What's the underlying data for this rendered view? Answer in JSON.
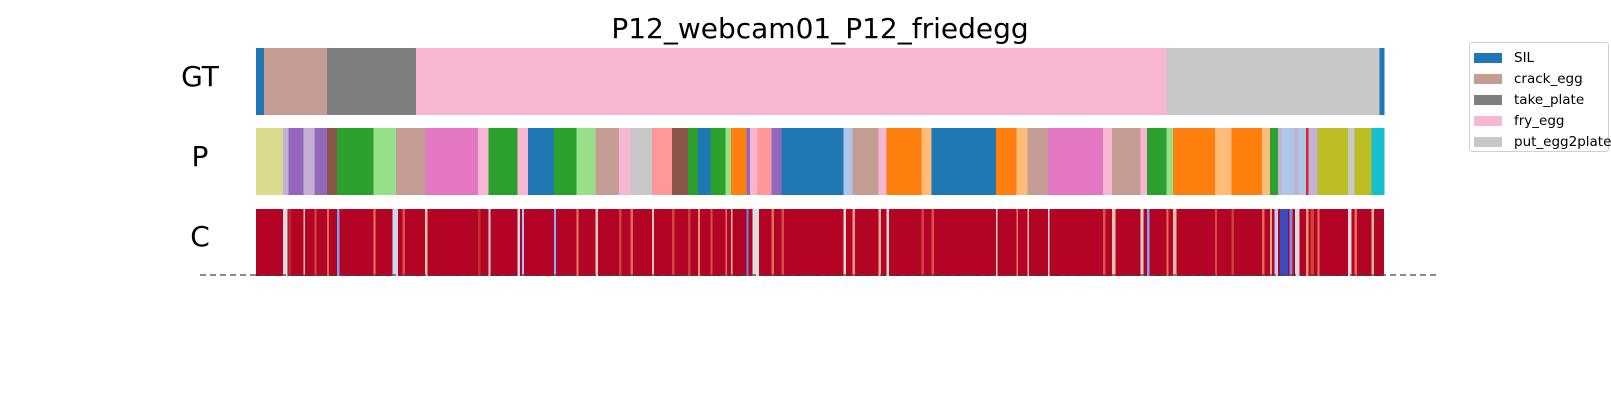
{
  "chart_data": {
    "type": "segmentation",
    "title": "P12_webcam01_P12_friedegg",
    "rows": [
      {
        "label": "GT",
        "segments": [
          {
            "start": 0.0,
            "end": 0.7,
            "class": "SIL",
            "color": "#1f77b4"
          },
          {
            "start": 0.7,
            "end": 6.3,
            "class": "crack_egg",
            "color": "#c49c94"
          },
          {
            "start": 6.3,
            "end": 14.2,
            "class": "take_plate",
            "color": "#7f7f7f"
          },
          {
            "start": 14.2,
            "end": 80.7,
            "class": "fry_egg",
            "color": "#f7b6d2"
          },
          {
            "start": 80.7,
            "end": 99.6,
            "class": "put_egg2plate",
            "color": "#c7c7c7"
          },
          {
            "start": 99.6,
            "end": 100.0,
            "class": "SIL",
            "color": "#1f77b4"
          }
        ]
      },
      {
        "label": "P",
        "segments": [
          {
            "start": 0.0,
            "end": 2.4,
            "color": "#dbdb8d"
          },
          {
            "start": 2.4,
            "end": 2.9,
            "color": "#c5b0d5"
          },
          {
            "start": 2.9,
            "end": 4.2,
            "color": "#9467bd"
          },
          {
            "start": 4.2,
            "end": 5.2,
            "color": "#c5b0d5"
          },
          {
            "start": 5.2,
            "end": 6.3,
            "color": "#9467bd"
          },
          {
            "start": 6.3,
            "end": 7.2,
            "color": "#8c564b"
          },
          {
            "start": 7.2,
            "end": 10.4,
            "color": "#2ca02c"
          },
          {
            "start": 10.4,
            "end": 12.4,
            "color": "#98df8a"
          },
          {
            "start": 12.4,
            "end": 15.0,
            "color": "#c49c94"
          },
          {
            "start": 15.0,
            "end": 19.7,
            "color": "#e377c2"
          },
          {
            "start": 19.7,
            "end": 20.6,
            "color": "#f7b6d2"
          },
          {
            "start": 20.6,
            "end": 23.2,
            "color": "#2ca02c"
          },
          {
            "start": 23.2,
            "end": 24.1,
            "color": "#f7b6d2"
          },
          {
            "start": 24.1,
            "end": 26.4,
            "color": "#1f77b4"
          },
          {
            "start": 26.4,
            "end": 28.4,
            "color": "#2ca02c"
          },
          {
            "start": 28.4,
            "end": 30.1,
            "color": "#98df8a"
          },
          {
            "start": 30.1,
            "end": 32.2,
            "color": "#c49c94"
          },
          {
            "start": 32.2,
            "end": 33.2,
            "color": "#f7b6d2"
          },
          {
            "start": 33.2,
            "end": 35.1,
            "color": "#c7c7c7"
          },
          {
            "start": 35.1,
            "end": 36.9,
            "color": "#ff9896"
          },
          {
            "start": 36.9,
            "end": 38.3,
            "color": "#8c564b"
          },
          {
            "start": 38.3,
            "end": 39.2,
            "color": "#2ca02c"
          },
          {
            "start": 39.2,
            "end": 40.3,
            "color": "#1f77b4"
          },
          {
            "start": 40.3,
            "end": 41.6,
            "color": "#2ca02c"
          },
          {
            "start": 41.6,
            "end": 42.1,
            "color": "#98df8a"
          },
          {
            "start": 42.1,
            "end": 43.5,
            "color": "#ff7f0e"
          },
          {
            "start": 43.5,
            "end": 43.8,
            "color": "#9467bd"
          },
          {
            "start": 43.8,
            "end": 44.4,
            "color": "#f7b6d2"
          },
          {
            "start": 44.4,
            "end": 45.7,
            "color": "#ff9896"
          },
          {
            "start": 45.7,
            "end": 46.6,
            "color": "#9467bd"
          },
          {
            "start": 46.6,
            "end": 52.1,
            "color": "#1f77b4"
          },
          {
            "start": 52.1,
            "end": 52.9,
            "color": "#aec7e8"
          },
          {
            "start": 52.9,
            "end": 55.2,
            "color": "#c49c94"
          },
          {
            "start": 55.2,
            "end": 55.9,
            "color": "#f7b6d2"
          },
          {
            "start": 55.9,
            "end": 59.0,
            "color": "#ff7f0e"
          },
          {
            "start": 59.0,
            "end": 59.9,
            "color": "#ffbb78"
          },
          {
            "start": 59.9,
            "end": 65.6,
            "color": "#1f77b4"
          },
          {
            "start": 65.6,
            "end": 67.4,
            "color": "#ff7f0e"
          },
          {
            "start": 67.4,
            "end": 68.4,
            "color": "#ffbb78"
          },
          {
            "start": 68.4,
            "end": 70.2,
            "color": "#c49c94"
          },
          {
            "start": 70.2,
            "end": 75.1,
            "color": "#e377c2"
          },
          {
            "start": 75.1,
            "end": 75.9,
            "color": "#f7b6d2"
          },
          {
            "start": 75.9,
            "end": 78.4,
            "color": "#c49c94"
          },
          {
            "start": 78.4,
            "end": 79.0,
            "color": "#f7b6d2"
          },
          {
            "start": 79.0,
            "end": 80.7,
            "color": "#2ca02c"
          },
          {
            "start": 80.7,
            "end": 81.3,
            "color": "#98df8a"
          },
          {
            "start": 81.3,
            "end": 85.0,
            "color": "#ff7f0e"
          },
          {
            "start": 85.0,
            "end": 86.5,
            "color": "#ffbb78"
          },
          {
            "start": 86.5,
            "end": 89.2,
            "color": "#ff7f0e"
          },
          {
            "start": 89.2,
            "end": 89.9,
            "color": "#ffbb78"
          },
          {
            "start": 89.9,
            "end": 90.6,
            "color": "#2ca02c"
          },
          {
            "start": 90.6,
            "end": 90.9,
            "color": "#c5b0d5"
          },
          {
            "start": 90.9,
            "end": 92.0,
            "color": "#aec7e8"
          },
          {
            "start": 92.0,
            "end": 92.4,
            "color": "#c5b0d5"
          },
          {
            "start": 92.4,
            "end": 93.1,
            "color": "#aec7e8"
          },
          {
            "start": 93.1,
            "end": 93.3,
            "color": "#d62728"
          },
          {
            "start": 93.3,
            "end": 94.1,
            "color": "#c5b0d5"
          },
          {
            "start": 94.1,
            "end": 96.8,
            "color": "#bcbd22"
          },
          {
            "start": 96.8,
            "end": 97.4,
            "color": "#c7c7c7"
          },
          {
            "start": 97.4,
            "end": 98.9,
            "color": "#bcbd22"
          },
          {
            "start": 98.9,
            "end": 100.0,
            "color": "#17becf"
          }
        ]
      },
      {
        "label": "C",
        "colormap": "coolwarm",
        "background_color": "#b40426",
        "low_confidence_marks": [
          {
            "pos": 2.4,
            "width": 0.4,
            "color": "#dcdddd"
          },
          {
            "pos": 2.9,
            "width": 0.2,
            "color": "#c0282f"
          },
          {
            "pos": 4.2,
            "width": 0.15,
            "color": "#ebc0a8"
          },
          {
            "pos": 5.2,
            "width": 0.15,
            "color": "#d24b40"
          },
          {
            "pos": 6.3,
            "width": 0.15,
            "color": "#e16852"
          },
          {
            "pos": 7.2,
            "width": 0.2,
            "color": "#7b9ff9"
          },
          {
            "pos": 10.4,
            "width": 0.2,
            "color": "#e9785d"
          },
          {
            "pos": 12.1,
            "width": 0.5,
            "color": "#cdd9ec"
          },
          {
            "pos": 13.0,
            "width": 0.2,
            "color": "#d65244"
          },
          {
            "pos": 15.0,
            "width": 0.2,
            "color": "#f5c4ac"
          },
          {
            "pos": 19.7,
            "width": 0.2,
            "color": "#c32e31"
          },
          {
            "pos": 20.6,
            "width": 0.2,
            "color": "#e7d7ce"
          },
          {
            "pos": 23.2,
            "width": 0.2,
            "color": "#dddcdc"
          },
          {
            "pos": 23.6,
            "width": 0.15,
            "color": "#a5c3fe"
          },
          {
            "pos": 26.4,
            "width": 0.2,
            "color": "#8db0fe"
          },
          {
            "pos": 28.4,
            "width": 0.2,
            "color": "#e97a5f"
          },
          {
            "pos": 30.1,
            "width": 0.2,
            "color": "#f2cbb7"
          },
          {
            "pos": 32.2,
            "width": 0.2,
            "color": "#cf453c"
          },
          {
            "pos": 33.2,
            "width": 0.2,
            "color": "#e16852"
          },
          {
            "pos": 35.1,
            "width": 0.2,
            "color": "#f4c5ad"
          },
          {
            "pos": 36.9,
            "width": 0.2,
            "color": "#d0473d"
          },
          {
            "pos": 38.3,
            "width": 0.2,
            "color": "#cc403a"
          },
          {
            "pos": 39.2,
            "width": 0.15,
            "color": "#f39475"
          },
          {
            "pos": 40.3,
            "width": 0.15,
            "color": "#d65244"
          },
          {
            "pos": 41.6,
            "width": 0.15,
            "color": "#e7745b"
          },
          {
            "pos": 42.1,
            "width": 0.15,
            "color": "#f7b89c"
          },
          {
            "pos": 43.5,
            "width": 0.15,
            "color": "#6788ee"
          },
          {
            "pos": 44.0,
            "width": 0.6,
            "color": "#dcdddd"
          },
          {
            "pos": 45.7,
            "width": 0.2,
            "color": "#e36c55"
          },
          {
            "pos": 46.6,
            "width": 0.2,
            "color": "#d44e41"
          },
          {
            "pos": 52.1,
            "width": 0.2,
            "color": "#e5d8d1"
          },
          {
            "pos": 52.9,
            "width": 0.2,
            "color": "#f59d7e"
          },
          {
            "pos": 55.2,
            "width": 0.2,
            "color": "#f7b093"
          },
          {
            "pos": 55.9,
            "width": 0.2,
            "color": "#e7d7ce"
          },
          {
            "pos": 59.0,
            "width": 0.2,
            "color": "#cf453c"
          },
          {
            "pos": 59.9,
            "width": 0.2,
            "color": "#d65244"
          },
          {
            "pos": 65.6,
            "width": 0.15,
            "color": "#e9d5cb"
          },
          {
            "pos": 67.4,
            "width": 0.15,
            "color": "#ec7f63"
          },
          {
            "pos": 68.4,
            "width": 0.15,
            "color": "#f6bda2"
          },
          {
            "pos": 70.2,
            "width": 0.15,
            "color": "#e5d8d1"
          },
          {
            "pos": 75.1,
            "width": 0.2,
            "color": "#d85646"
          },
          {
            "pos": 75.9,
            "width": 0.3,
            "color": "#f4c5ad"
          },
          {
            "pos": 78.4,
            "width": 0.3,
            "color": "#ead4c8"
          },
          {
            "pos": 79.0,
            "width": 0.2,
            "color": "#7da0f9"
          },
          {
            "pos": 80.7,
            "width": 0.2,
            "color": "#e46e56"
          },
          {
            "pos": 81.3,
            "width": 0.3,
            "color": "#f5c0a7"
          },
          {
            "pos": 85.0,
            "width": 0.2,
            "color": "#d24b40"
          },
          {
            "pos": 86.5,
            "width": 0.2,
            "color": "#cc403a"
          },
          {
            "pos": 89.2,
            "width": 0.2,
            "color": "#e16852"
          },
          {
            "pos": 89.9,
            "width": 0.15,
            "color": "#f6a385"
          },
          {
            "pos": 90.3,
            "width": 0.3,
            "color": "#b9d0f9"
          },
          {
            "pos": 90.8,
            "width": 0.7,
            "color": "#3b4cc0"
          },
          {
            "pos": 91.6,
            "width": 0.3,
            "color": "#6f92f3"
          },
          {
            "pos": 92.1,
            "width": 0.4,
            "color": "#dcdddd"
          },
          {
            "pos": 93.1,
            "width": 0.2,
            "color": "#f39475"
          },
          {
            "pos": 93.5,
            "width": 0.3,
            "color": "#cd423b"
          },
          {
            "pos": 94.1,
            "width": 0.2,
            "color": "#e8765c"
          },
          {
            "pos": 96.8,
            "width": 0.3,
            "color": "#dcdddd"
          },
          {
            "pos": 97.4,
            "width": 0.2,
            "color": "#e46e56"
          },
          {
            "pos": 98.9,
            "width": 0.2,
            "color": "#f7b89c"
          }
        ]
      }
    ],
    "legend": {
      "placement": "top-right, outside",
      "entries": [
        {
          "label": "SIL",
          "color": "#1f77b4"
        },
        {
          "label": "crack_egg",
          "color": "#c49c94"
        },
        {
          "label": "take_plate",
          "color": "#7f7f7f"
        },
        {
          "label": "fry_egg",
          "color": "#f7b6d2"
        },
        {
          "label": "put_egg2plate",
          "color": "#c7c7c7"
        }
      ]
    },
    "x_range": [
      0,
      100
    ],
    "baseline": "dashed",
    "grid": false
  }
}
